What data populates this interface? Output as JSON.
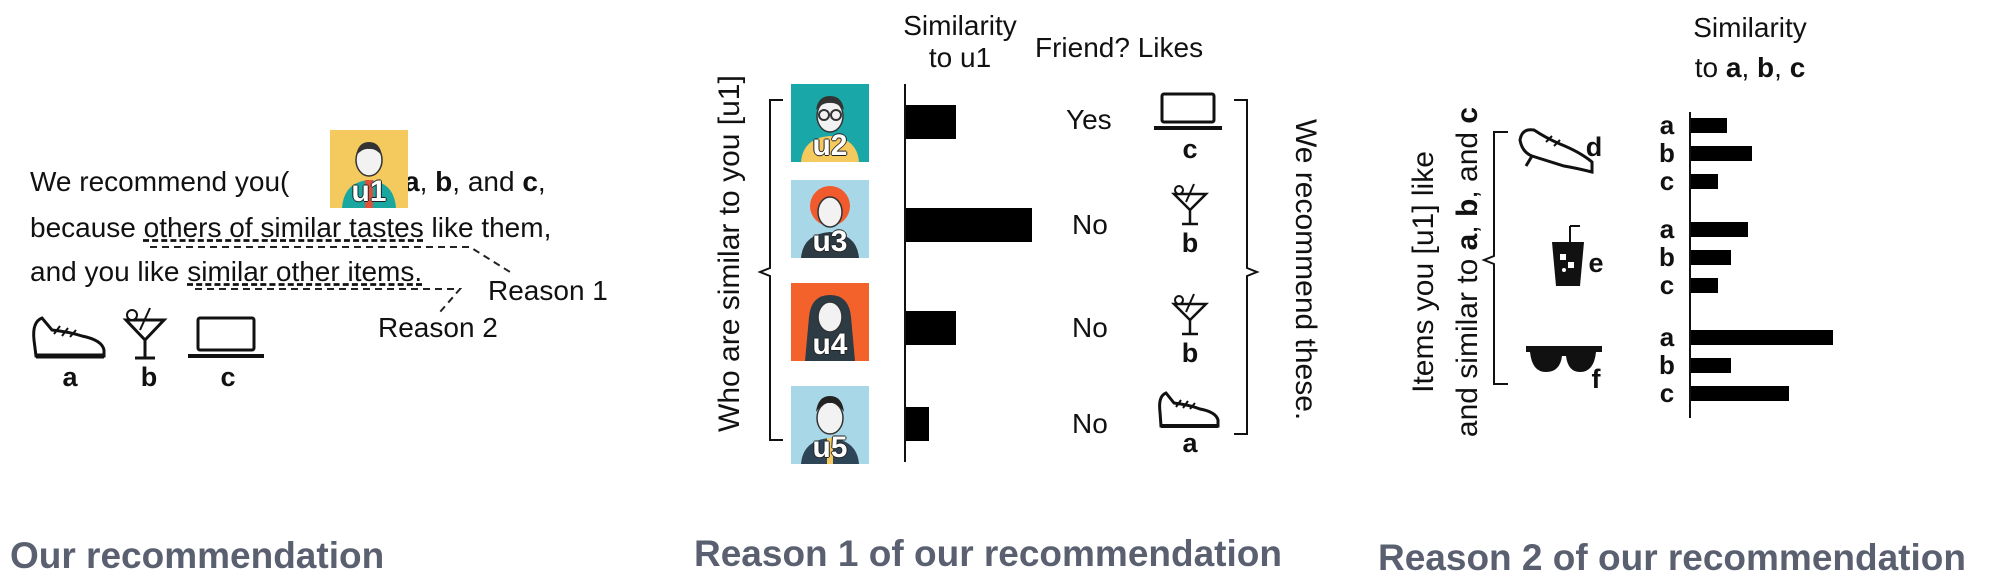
{
  "panel1": {
    "line1_pre": "We recommend you(",
    "avatar_tag": "u1",
    "line1_post_a": ") ",
    "item_a": "a",
    "sep1": ", ",
    "item_b": "b",
    "sep2": ", and ",
    "item_c": "c",
    "sep3": ",",
    "line2_pre": "because ",
    "line2_underline": "others of similar tastes",
    "line2_post": " like them,",
    "line3_pre": "and you like ",
    "line3_underline": "similar other items.",
    "reason1": "Reason 1",
    "reason2": "Reason 2",
    "icons": [
      {
        "icon": "shoe-icon",
        "label": "a"
      },
      {
        "icon": "cocktail-icon",
        "label": "b"
      },
      {
        "icon": "laptop-icon",
        "label": "c"
      }
    ],
    "caption": "Our recommendation"
  },
  "panel2": {
    "header_similarity_l1": "Similarity",
    "header_similarity_l2": "to u1",
    "header_friend": "Friend? Likes",
    "left_vertical": "Who are similar to you [u1]",
    "right_vertical": "We recommend these.",
    "users": [
      {
        "tag": "u2",
        "similarity": 0.4,
        "friend": "Yes",
        "likes_icon": "laptop-icon",
        "likes": "c",
        "bg": "#1aa7a8"
      },
      {
        "tag": "u3",
        "similarity": 1.0,
        "friend": "No",
        "likes_icon": "cocktail-icon",
        "likes": "b",
        "bg": "#a8d8e8"
      },
      {
        "tag": "u4",
        "similarity": 0.4,
        "friend": "No",
        "likes_icon": "cocktail-icon",
        "likes": "b",
        "bg": "#f4622c"
      },
      {
        "tag": "u5",
        "similarity": 0.18,
        "friend": "No",
        "likes_icon": "shoe-icon",
        "likes": "a",
        "bg": "#a8d8e8"
      }
    ],
    "caption": "Reason 1 of our recommendation"
  },
  "panel3": {
    "header_l1": "Similarity",
    "header_l2_pre": "to ",
    "header_a": "a",
    "header_sep1": ", ",
    "header_b": "b",
    "header_sep2": ", ",
    "header_c": "c",
    "left_vertical_l1": "Items you  [u1] like",
    "left_vertical_l2_pre": "and similar to ",
    "left_vertical_a": "a",
    "left_vertical_sep1": ", ",
    "left_vertical_b": "b",
    "left_vertical_sep2": ", and ",
    "left_vertical_c": "c",
    "items": [
      {
        "label": "d",
        "icon": "dress-shoe-icon",
        "similarities": [
          {
            "to": "a",
            "value": 0.25
          },
          {
            "to": "b",
            "value": 0.43
          },
          {
            "to": "c",
            "value": 0.19
          }
        ]
      },
      {
        "label": "e",
        "icon": "iced-drink-icon",
        "similarities": [
          {
            "to": "a",
            "value": 0.4
          },
          {
            "to": "b",
            "value": 0.28
          },
          {
            "to": "c",
            "value": 0.19
          }
        ]
      },
      {
        "label": "f",
        "icon": "sunglasses-icon",
        "similarities": [
          {
            "to": "a",
            "value": 1.0
          },
          {
            "to": "b",
            "value": 0.28
          },
          {
            "to": "c",
            "value": 0.69
          }
        ]
      }
    ],
    "caption": "Reason 2 of our recommendation"
  }
}
